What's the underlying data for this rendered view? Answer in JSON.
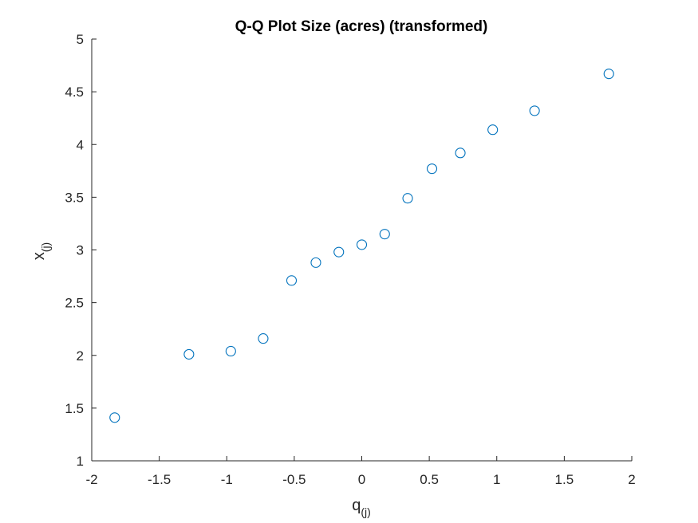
{
  "chart_data": {
    "type": "scatter",
    "title": "Q-Q Plot Size (acres) (transformed)",
    "xlabel": {
      "base": "q",
      "subscript": "(j)"
    },
    "ylabel": {
      "base": "x",
      "subscript": "(j)"
    },
    "xlim": [
      -2,
      2
    ],
    "ylim": [
      1,
      5
    ],
    "xticks": [
      "-2",
      "-1.5",
      "-1",
      "-0.5",
      "0",
      "0.5",
      "1",
      "1.5",
      "2"
    ],
    "yticks": [
      "1",
      "1.5",
      "2",
      "2.5",
      "3",
      "3.5",
      "4",
      "4.5",
      "5"
    ],
    "grid": false,
    "marker": "circle-open",
    "marker_color": "#0072BD",
    "axis_color": "#262626",
    "points": [
      {
        "x": -1.83,
        "y": 1.41
      },
      {
        "x": -1.28,
        "y": 2.01
      },
      {
        "x": -0.97,
        "y": 2.04
      },
      {
        "x": -0.73,
        "y": 2.16
      },
      {
        "x": -0.52,
        "y": 2.71
      },
      {
        "x": -0.34,
        "y": 2.88
      },
      {
        "x": -0.17,
        "y": 2.98
      },
      {
        "x": 0.0,
        "y": 3.05
      },
      {
        "x": 0.17,
        "y": 3.15
      },
      {
        "x": 0.34,
        "y": 3.49
      },
      {
        "x": 0.52,
        "y": 3.77
      },
      {
        "x": 0.73,
        "y": 3.92
      },
      {
        "x": 0.97,
        "y": 4.14
      },
      {
        "x": 1.28,
        "y": 4.32
      },
      {
        "x": 1.83,
        "y": 4.67
      }
    ]
  }
}
